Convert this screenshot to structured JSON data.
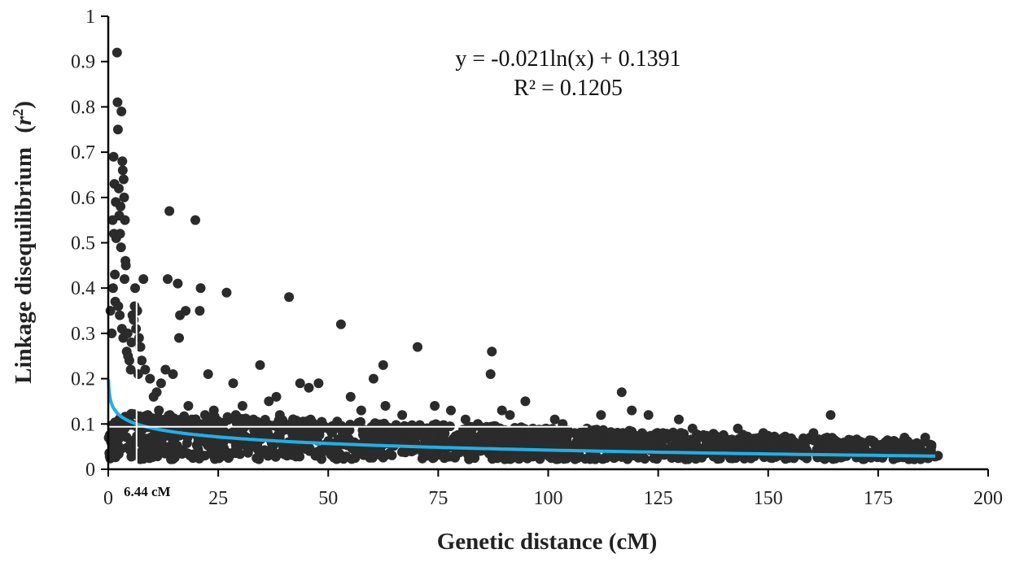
{
  "chart_data": {
    "type": "scatter",
    "xlabel": "Genetic distance (cM)",
    "ylabel_main": "Linkage disequilibrium",
    "ylabel_symbol": "r",
    "ylabel_sup": "2",
    "xlim": [
      0,
      200
    ],
    "ylim": [
      0,
      1
    ],
    "x_ticks": [
      0,
      25,
      50,
      75,
      100,
      125,
      150,
      175,
      200
    ],
    "y_ticks": [
      0,
      0.1,
      0.2,
      0.3,
      0.4,
      0.5,
      0.6,
      0.7,
      0.8,
      0.9,
      1
    ],
    "x_tick_labels": [
      "0",
      "25",
      "50",
      "75",
      "100",
      "125",
      "150",
      "175",
      "200"
    ],
    "y_tick_labels": [
      "0",
      "0.1",
      "0.2",
      "0.3",
      "0.4",
      "0.5",
      "0.6",
      "0.7",
      "0.8",
      "0.9",
      "1"
    ],
    "equation": "y = -0.021ln(x) + 0.1391",
    "r_squared": "R² = 0.1205",
    "trendline": {
      "a": -0.021,
      "b": 0.1391,
      "x_min": 0.06,
      "x_max": 188,
      "color": "#1fb0e8"
    },
    "threshold": {
      "x": 6.44,
      "y": 0.0939,
      "label": "6.44 cM",
      "color": "#ffffff"
    },
    "point_color": "#2b2b2b",
    "points": [
      [
        0.5,
        0.35
      ],
      [
        0.8,
        0.3
      ],
      [
        1.0,
        0.55
      ],
      [
        1.2,
        0.69
      ],
      [
        1.4,
        0.63
      ],
      [
        1.5,
        0.43
      ],
      [
        1.7,
        0.59
      ],
      [
        1.8,
        0.51
      ],
      [
        2.0,
        0.92
      ],
      [
        2.1,
        0.81
      ],
      [
        2.2,
        0.75
      ],
      [
        2.4,
        0.62
      ],
      [
        2.5,
        0.56
      ],
      [
        2.7,
        0.52
      ],
      [
        2.9,
        0.49
      ],
      [
        3.0,
        0.79
      ],
      [
        3.2,
        0.68
      ],
      [
        3.3,
        0.66
      ],
      [
        3.5,
        0.64
      ],
      [
        3.6,
        0.6
      ],
      [
        3.8,
        0.55
      ],
      [
        3.9,
        0.46
      ],
      [
        4.0,
        0.45
      ],
      [
        1.1,
        0.4
      ],
      [
        1.6,
        0.37
      ],
      [
        2.3,
        0.36
      ],
      [
        2.6,
        0.34
      ],
      [
        3.1,
        0.31
      ],
      [
        3.4,
        0.29
      ],
      [
        4.2,
        0.26
      ],
      [
        4.5,
        0.25
      ],
      [
        4.8,
        0.24
      ],
      [
        5.1,
        0.22
      ],
      [
        5.5,
        0.34
      ],
      [
        5.8,
        0.33
      ],
      [
        6.0,
        0.36
      ],
      [
        6.3,
        0.31
      ],
      [
        6.6,
        0.35
      ],
      [
        7.0,
        0.29
      ],
      [
        7.3,
        0.27
      ],
      [
        7.6,
        0.24
      ],
      [
        8.0,
        0.42
      ],
      [
        8.4,
        0.22
      ],
      [
        1.3,
        0.52
      ],
      [
        2.8,
        0.58
      ],
      [
        3.7,
        0.42
      ],
      [
        4.4,
        0.3
      ],
      [
        5.3,
        0.28
      ],
      [
        6.1,
        0.4
      ],
      [
        6.8,
        0.21
      ],
      [
        13.9,
        0.57
      ],
      [
        19.8,
        0.55
      ],
      [
        13.5,
        0.42
      ],
      [
        15.8,
        0.41
      ],
      [
        17.6,
        0.35
      ],
      [
        16.3,
        0.34
      ],
      [
        21.0,
        0.4
      ],
      [
        20.8,
        0.35
      ],
      [
        16.1,
        0.29
      ],
      [
        26.9,
        0.39
      ],
      [
        41.1,
        0.38
      ],
      [
        52.9,
        0.32
      ],
      [
        70.3,
        0.27
      ],
      [
        87.2,
        0.26
      ],
      [
        62.5,
        0.23
      ],
      [
        34.5,
        0.23
      ],
      [
        13.0,
        0.22
      ],
      [
        14.7,
        0.21
      ],
      [
        22.7,
        0.21
      ],
      [
        28.4,
        0.19
      ],
      [
        60.3,
        0.2
      ],
      [
        43.6,
        0.19
      ],
      [
        45.6,
        0.18
      ],
      [
        47.8,
        0.19
      ],
      [
        86.9,
        0.21
      ],
      [
        116.7,
        0.17
      ],
      [
        94.8,
        0.15
      ],
      [
        74.2,
        0.14
      ],
      [
        55.1,
        0.16
      ],
      [
        63.0,
        0.14
      ],
      [
        77.9,
        0.13
      ],
      [
        89.5,
        0.13
      ],
      [
        101.5,
        0.11
      ],
      [
        112.0,
        0.12
      ],
      [
        119.0,
        0.13
      ],
      [
        122.8,
        0.12
      ],
      [
        164.2,
        0.12
      ],
      [
        129.7,
        0.11
      ],
      [
        103.3,
        0.1
      ],
      [
        91.3,
        0.12
      ],
      [
        143.1,
        0.09
      ],
      [
        148.9,
        0.08
      ],
      [
        160.3,
        0.08
      ],
      [
        163.4,
        0.07
      ],
      [
        165.8,
        0.06
      ],
      [
        175.5,
        0.05
      ],
      [
        177.8,
        0.04
      ],
      [
        181.0,
        0.07
      ],
      [
        185.7,
        0.07
      ],
      [
        187.1,
        0.05
      ],
      [
        188.6,
        0.03
      ],
      [
        170.2,
        0.04
      ],
      [
        153.5,
        0.07
      ],
      [
        157.7,
        0.06
      ],
      [
        132.8,
        0.09
      ],
      [
        138.4,
        0.07
      ],
      [
        147.6,
        0.06
      ],
      [
        126.1,
        0.08
      ],
      [
        108.8,
        0.09
      ],
      [
        99.2,
        0.08
      ],
      [
        36.5,
        0.15
      ],
      [
        38.2,
        0.16
      ],
      [
        30.5,
        0.14
      ],
      [
        24.0,
        0.13
      ],
      [
        18.2,
        0.14
      ],
      [
        11.0,
        0.17
      ],
      [
        12.0,
        0.19
      ],
      [
        9.5,
        0.2
      ],
      [
        10.3,
        0.16
      ],
      [
        57.5,
        0.13
      ],
      [
        66.8,
        0.12
      ],
      [
        81.2,
        0.11
      ],
      [
        84.0,
        0.1
      ],
      [
        96.5,
        0.09
      ],
      [
        106.0,
        0.08
      ],
      [
        114.5,
        0.08
      ],
      [
        117.8,
        0.07
      ],
      [
        136.0,
        0.06
      ],
      [
        141.0,
        0.05
      ],
      [
        151.0,
        0.04
      ],
      [
        155.8,
        0.03
      ],
      [
        162.0,
        0.04
      ],
      [
        167.5,
        0.03
      ],
      [
        172.0,
        0.03
      ],
      [
        145.0,
        0.04
      ],
      [
        128.0,
        0.05
      ],
      [
        133.5,
        0.04
      ],
      [
        120.5,
        0.05
      ],
      [
        111.0,
        0.06
      ],
      [
        104.5,
        0.05
      ],
      [
        93.0,
        0.06
      ],
      [
        88.0,
        0.07
      ],
      [
        79.0,
        0.07
      ],
      [
        72.0,
        0.08
      ],
      [
        68.0,
        0.09
      ],
      [
        64.0,
        0.07
      ],
      [
        58.0,
        0.08
      ],
      [
        50.0,
        0.09
      ],
      [
        46.0,
        0.11
      ],
      [
        42.0,
        0.1
      ],
      [
        39.0,
        0.12
      ],
      [
        33.0,
        0.11
      ],
      [
        29.0,
        0.12
      ],
      [
        25.5,
        0.1
      ],
      [
        22.0,
        0.12
      ],
      [
        19.0,
        0.11
      ],
      [
        16.5,
        0.1
      ],
      [
        14.0,
        0.12
      ],
      [
        11.5,
        0.13
      ],
      [
        9.0,
        0.12
      ]
    ],
    "cloud": {
      "x_min": 0.1,
      "x_max": 188,
      "count": 1500,
      "upper_bound": 0.115,
      "lower_bound": 0.022
    }
  }
}
